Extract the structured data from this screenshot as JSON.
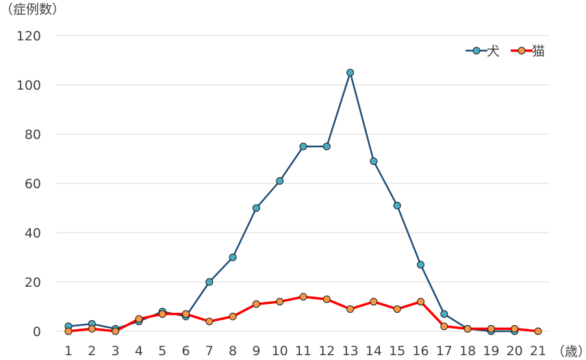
{
  "chart_data": {
    "type": "line",
    "ylabel": "（症例数）",
    "xlabel": "（歳）",
    "ylim": [
      0,
      120
    ],
    "yticks": [
      0,
      20,
      40,
      60,
      80,
      100,
      120
    ],
    "grid": true,
    "legend": "top-right",
    "categories": [
      "1",
      "2",
      "3",
      "4",
      "5",
      "6",
      "7",
      "8",
      "9",
      "10",
      "11",
      "12",
      "13",
      "14",
      "15",
      "16",
      "17",
      "18",
      "19",
      "20",
      "21"
    ],
    "series": [
      {
        "name": "犬",
        "color": "#1f4e79",
        "marker_color": "#4bacc6",
        "values": [
          2,
          3,
          1,
          4,
          8,
          6,
          20,
          30,
          50,
          61,
          75,
          75,
          105,
          69,
          51,
          27,
          7,
          1,
          0,
          0,
          null
        ]
      },
      {
        "name": "猫",
        "color": "#ff0000",
        "marker_color": "#f79646",
        "values": [
          0,
          1,
          0,
          5,
          7,
          7,
          4,
          6,
          11,
          12,
          14,
          13,
          9,
          12,
          9,
          12,
          2,
          1,
          1,
          1,
          0
        ]
      }
    ]
  }
}
